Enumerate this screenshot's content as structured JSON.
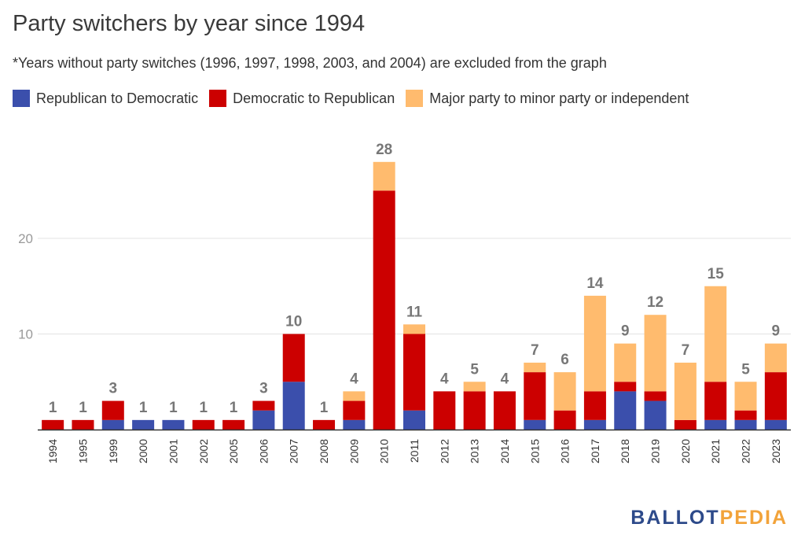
{
  "chart_data": {
    "type": "bar",
    "stacked": true,
    "title": "Party switchers by year since 1994",
    "subtitle": "*Years without party switches (1996, 1997, 1998, 2003, and 2004) are excluded from the graph",
    "categories": [
      "1994",
      "1995",
      "1999",
      "2000",
      "2001",
      "2002",
      "2005",
      "2006",
      "2007",
      "2008",
      "2009",
      "2010",
      "2011",
      "2012",
      "2013",
      "2014",
      "2015",
      "2016",
      "2017",
      "2018",
      "2019",
      "2020",
      "2021",
      "2022",
      "2023"
    ],
    "series": [
      {
        "name": "Republican to Democratic",
        "color": "#3b4fac",
        "values": [
          0,
          0,
          1,
          1,
          1,
          0,
          0,
          2,
          5,
          0,
          1,
          0,
          2,
          0,
          0,
          0,
          1,
          0,
          1,
          4,
          3,
          0,
          1,
          1,
          1
        ]
      },
      {
        "name": "Democratic to Republican",
        "color": "#cc0000",
        "values": [
          1,
          1,
          2,
          0,
          0,
          1,
          1,
          1,
          5,
          1,
          2,
          25,
          8,
          4,
          4,
          4,
          5,
          2,
          3,
          1,
          1,
          1,
          4,
          1,
          5
        ]
      },
      {
        "name": "Major party to minor party or independent",
        "color": "#ffbb6e",
        "values": [
          0,
          0,
          0,
          0,
          0,
          0,
          0,
          0,
          0,
          0,
          1,
          3,
          1,
          0,
          1,
          0,
          1,
          4,
          10,
          4,
          8,
          6,
          10,
          3,
          3
        ]
      }
    ],
    "totals": [
      1,
      1,
      3,
      1,
      1,
      1,
      1,
      3,
      10,
      1,
      4,
      28,
      11,
      4,
      5,
      4,
      7,
      6,
      14,
      9,
      12,
      7,
      15,
      5,
      9
    ],
    "ylim": [
      0,
      30
    ],
    "yticks": [
      10,
      20
    ],
    "grid": true,
    "legend_position": "top-left"
  },
  "brand": {
    "part1": "BALLOT",
    "part2": "PEDIA"
  }
}
